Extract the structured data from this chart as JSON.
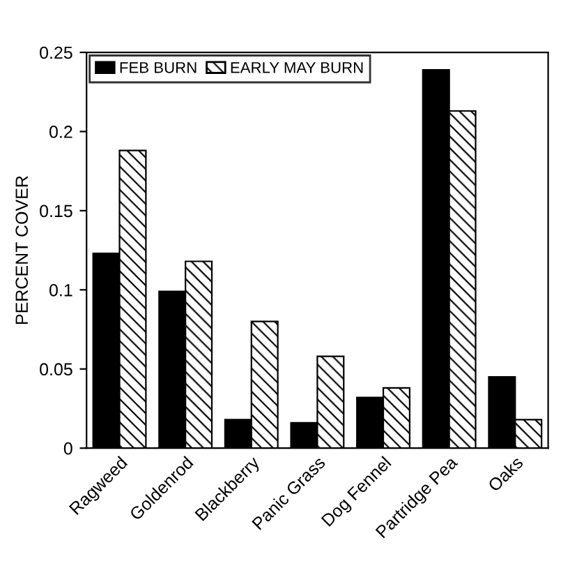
{
  "chart_data": {
    "type": "bar",
    "ylabel": "PERCENT COVER",
    "categories": [
      "Ragweed",
      "Goldenrod",
      "Blackberry",
      "Panic Grass",
      "Dog Fennel",
      "Partridge Pea",
      "Oaks"
    ],
    "series": [
      {
        "name": "FEB BURN",
        "color": "#000000",
        "values": [
          0.123,
          0.099,
          0.018,
          0.016,
          0.032,
          0.239,
          0.045
        ]
      },
      {
        "name": "EARLY MAY BURN",
        "color": "#000000",
        "values": [
          0.188,
          0.118,
          0.08,
          0.058,
          0.038,
          0.213,
          0.018
        ]
      }
    ],
    "ylim": [
      0,
      0.25
    ],
    "yticks": [
      0,
      0.05,
      0.1,
      0.15,
      0.2,
      0.25
    ],
    "grid": false,
    "legend": "top left"
  }
}
